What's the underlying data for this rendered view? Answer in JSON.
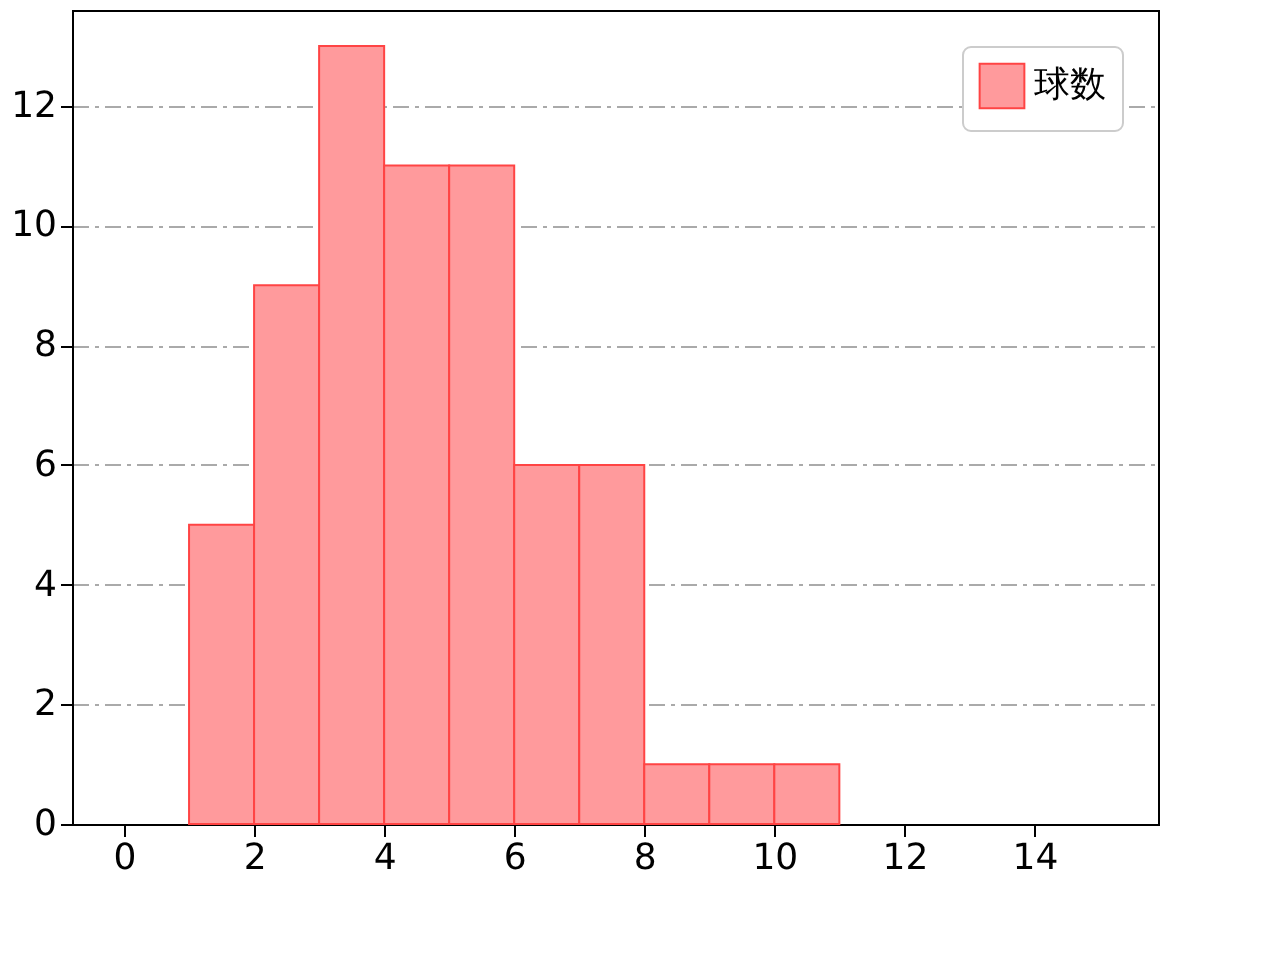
{
  "chart_data": {
    "type": "histogram",
    "bins": [
      1,
      2,
      3,
      4,
      5,
      6,
      7,
      8,
      9,
      10,
      11
    ],
    "series": [
      {
        "name": "球数",
        "color": "#ff9a9c",
        "values": [
          5,
          9,
          13,
          11,
          11,
          6,
          6,
          1,
          1,
          1
        ]
      }
    ],
    "xlim": [
      -0.8,
      15.9
    ],
    "xticks": [
      0,
      2,
      4,
      6,
      8,
      10,
      12,
      14
    ],
    "ylim": [
      0,
      13.6
    ],
    "yticks": [
      0,
      2,
      4,
      6,
      8,
      10,
      12
    ],
    "grid": "y",
    "legend": "top right"
  }
}
